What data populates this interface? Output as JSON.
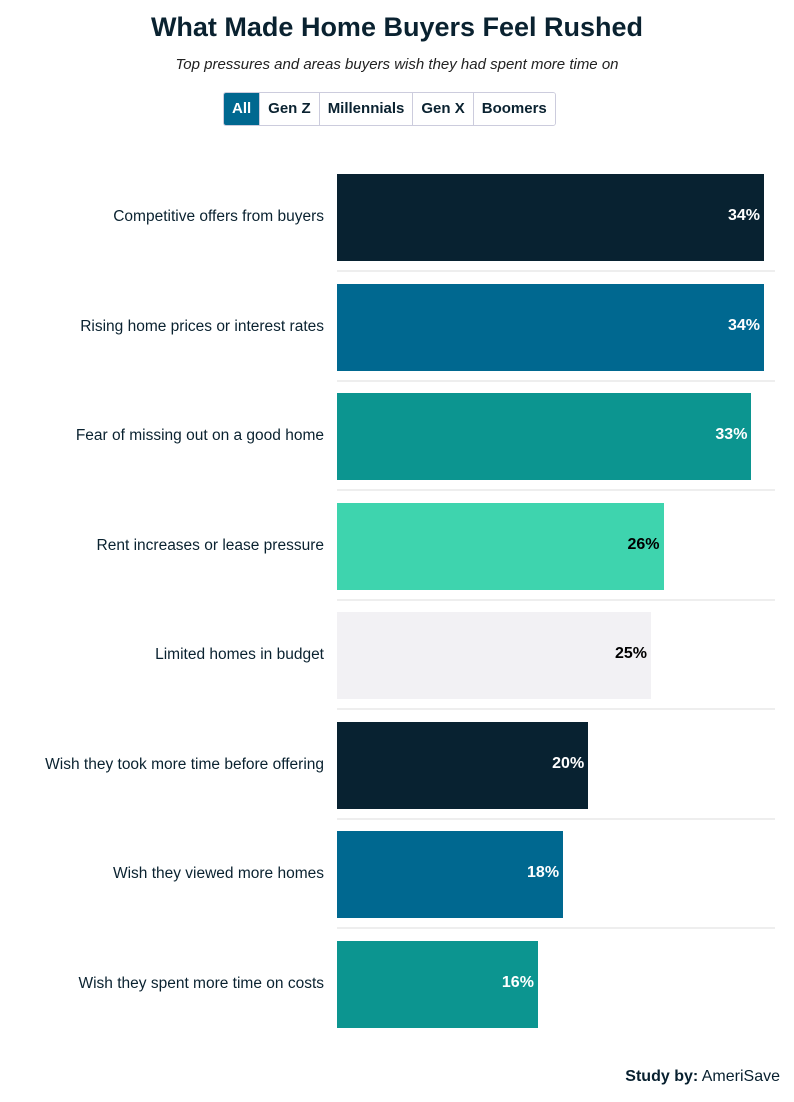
{
  "chart_data": {
    "type": "bar",
    "orientation": "horizontal",
    "title": "What Made Home Buyers Feel Rushed",
    "subtitle": "Top pressures and areas buyers wish they had spent more time on",
    "categories": [
      "Competitive offers from buyers",
      "Rising home prices or interest rates",
      "Fear of missing out on a good home",
      "Rent increases or lease pressure",
      "Limited homes in budget",
      "Wish they took more time before offering",
      "Wish they viewed more homes",
      "Wish they spent more time on costs"
    ],
    "values": [
      34,
      34,
      33,
      26,
      25,
      20,
      18,
      16
    ],
    "labels": [
      "34%",
      "34%",
      "33%",
      "26%",
      "25%",
      "20%",
      "18%",
      "16%"
    ],
    "colors": [
      "#082231",
      "#006890",
      "#0c9590",
      "#3ed4ae",
      "#f2f1f4",
      "#082231",
      "#006890",
      "#0c9590"
    ],
    "label_colors": [
      "#ffffff",
      "#ffffff",
      "#ffffff",
      "#000000",
      "#000000",
      "#ffffff",
      "#ffffff",
      "#ffffff"
    ],
    "xlim": [
      0,
      34
    ]
  },
  "tabs": [
    "All",
    "Gen Z",
    "Millennials",
    "Gen X",
    "Boomers"
  ],
  "active_tab": "All",
  "credit": {
    "prefix": "Study by:",
    "name": "AmeriSave"
  }
}
